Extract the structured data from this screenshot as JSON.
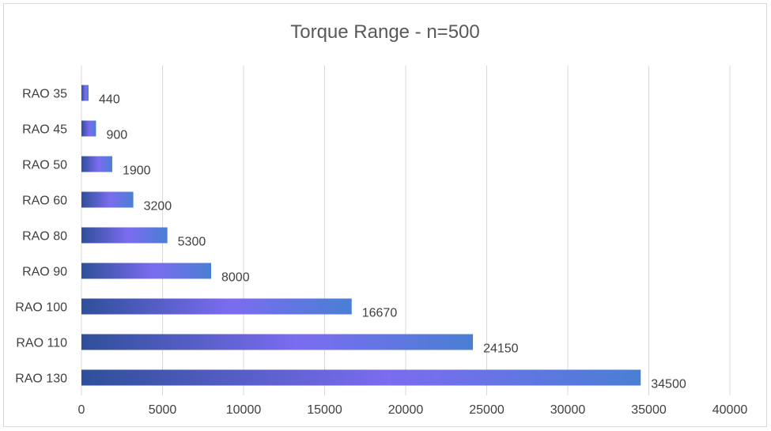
{
  "chart_data": {
    "type": "bar",
    "orientation": "horizontal",
    "title": "Torque Range - n=500",
    "xlabel": "",
    "ylabel": "",
    "categories": [
      "RAO 35",
      "RAO 45",
      "RAO 50",
      "RAO 60",
      "RAO 80",
      "RAO 90",
      "RAO 100",
      "RAO 110",
      "RAO 130"
    ],
    "values": [
      440,
      900,
      1900,
      3200,
      5300,
      8000,
      16670,
      24150,
      34500
    ],
    "xlim": [
      0,
      40000
    ],
    "xticks": [
      "0",
      "5000",
      "10000",
      "15000",
      "20000",
      "25000",
      "30000",
      "35000",
      "40000"
    ],
    "grid": true,
    "legend": "none",
    "data_labels": true,
    "colors": {
      "bar_gradient": [
        "#2f4f9a",
        "#7b6cf0",
        "#4a7fd4"
      ],
      "gridline": "#d9d9d9",
      "text": "#404040",
      "title": "#595959"
    }
  }
}
